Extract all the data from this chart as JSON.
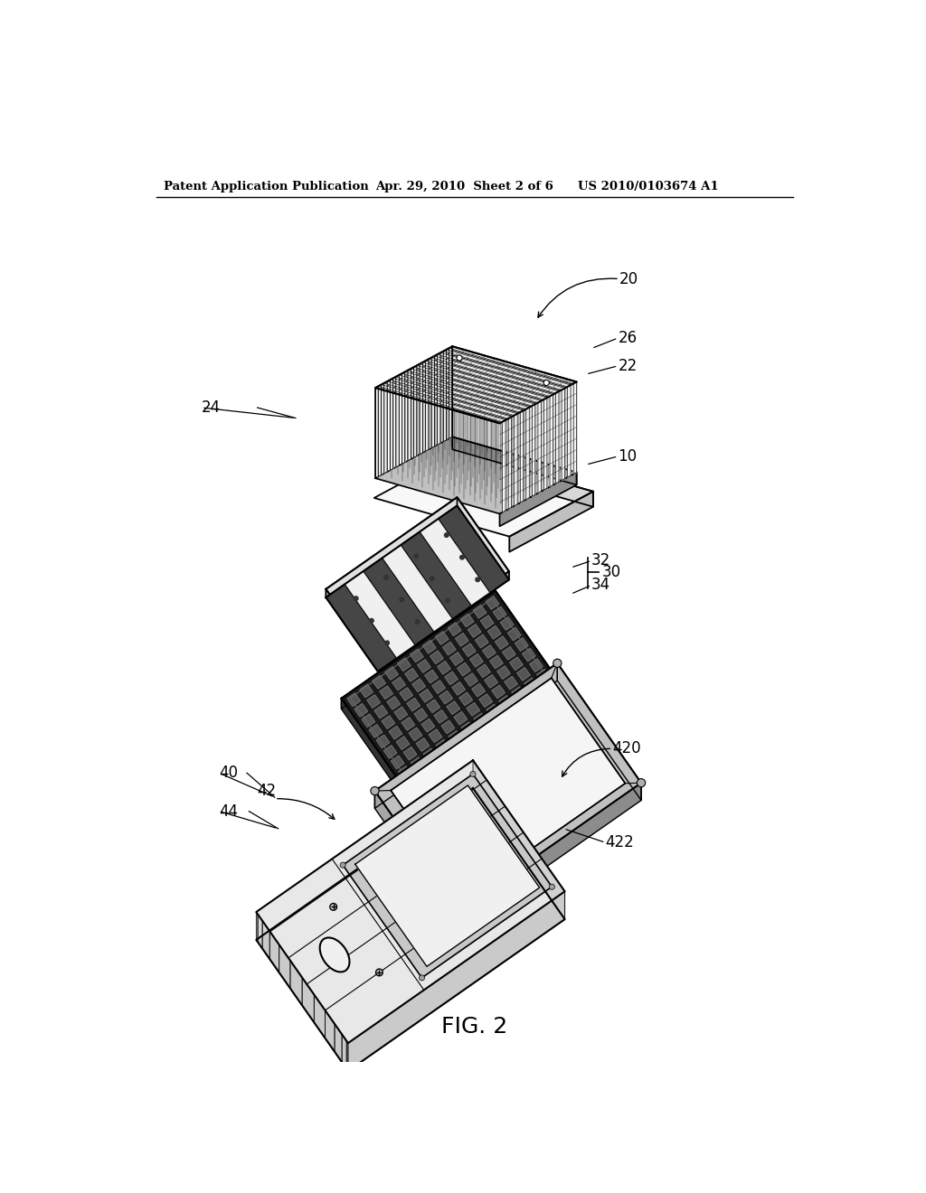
{
  "background_color": "#ffffff",
  "header_left": "Patent Application Publication",
  "header_mid": "Apr. 29, 2010  Sheet 2 of 6",
  "header_right": "US 2010/0103674 A1",
  "figure_label": "FIG. 2"
}
